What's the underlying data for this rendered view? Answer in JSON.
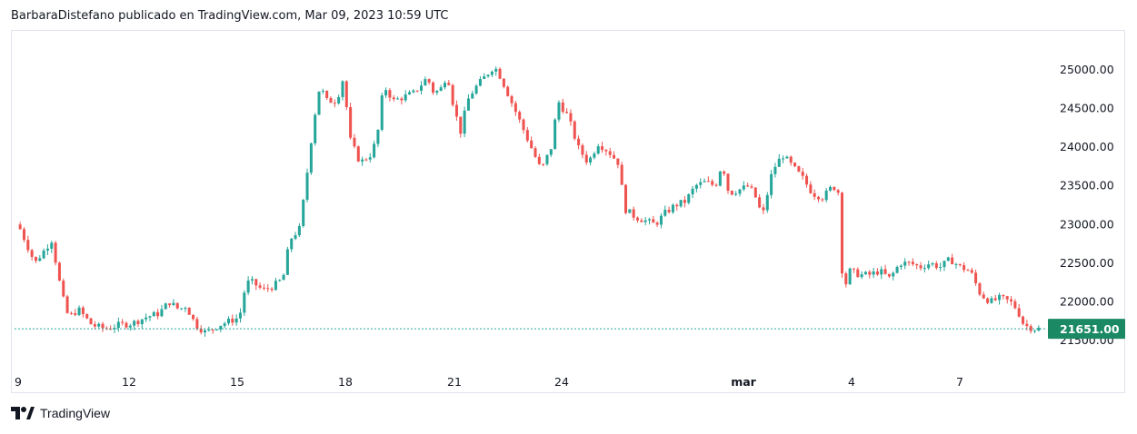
{
  "header": {
    "title": "BarbaraDistefano publicado en TradingView.com, Mar 09, 2023 10:59 UTC"
  },
  "footer": {
    "brand": "TradingView",
    "logo_icon": "tradingview-logo-icon"
  },
  "colors": {
    "up": "#26a69a",
    "down": "#ef5350",
    "last_price_bg": "#1b8a64",
    "grid": "#e0e3eb"
  },
  "chart_data": {
    "type": "candlestick",
    "title": "",
    "xlabel": "",
    "ylabel": "",
    "ylim": [
      21400,
      25400
    ],
    "y_ticks": [
      "21500.00",
      "22000.00",
      "22500.00",
      "23000.00",
      "23500.00",
      "24000.00",
      "24500.00",
      "25000.00"
    ],
    "x_ticks": [
      "9",
      "12",
      "15",
      "18",
      "21",
      "24",
      "mar",
      "4",
      "7"
    ],
    "last_price": "21651.00",
    "grid": false,
    "series": [
      {
        "values": [
          [
            0,
            23000
          ],
          [
            0.5,
            22500
          ],
          [
            1,
            22800
          ],
          [
            1.3,
            22100
          ],
          [
            1.5,
            21800
          ],
          [
            1.8,
            21900
          ],
          [
            2.2,
            21700
          ],
          [
            2.6,
            21650
          ],
          [
            3,
            21700
          ],
          [
            3.4,
            21720
          ],
          [
            3.8,
            21800
          ],
          [
            4.2,
            21850
          ],
          [
            4.5,
            22000
          ],
          [
            4.8,
            21900
          ],
          [
            5,
            21950
          ],
          [
            5.3,
            21700
          ],
          [
            5.6,
            21600
          ],
          [
            6,
            21700
          ],
          [
            6.3,
            21750
          ],
          [
            6.6,
            21800
          ],
          [
            6.8,
            22250
          ],
          [
            7,
            22250
          ],
          [
            7.3,
            22150
          ],
          [
            7.6,
            22200
          ],
          [
            7.9,
            22300
          ],
          [
            8.1,
            22800
          ],
          [
            8.4,
            22950
          ],
          [
            8.6,
            23600
          ],
          [
            8.8,
            24300
          ],
          [
            9,
            24800
          ],
          [
            9.2,
            24600
          ],
          [
            9.5,
            24600
          ],
          [
            9.7,
            24900
          ],
          [
            9.9,
            24100
          ],
          [
            10.2,
            23800
          ],
          [
            10.5,
            23900
          ],
          [
            10.7,
            24100
          ],
          [
            10.9,
            24800
          ],
          [
            11.2,
            24600
          ],
          [
            11.5,
            24650
          ],
          [
            11.8,
            24700
          ],
          [
            12,
            24800
          ],
          [
            12.2,
            24900
          ],
          [
            12.4,
            24700
          ],
          [
            12.6,
            24750
          ],
          [
            12.8,
            24950
          ],
          [
            13,
            24500
          ],
          [
            13.2,
            24200
          ],
          [
            13.4,
            24600
          ],
          [
            13.6,
            24750
          ],
          [
            13.8,
            24850
          ],
          [
            14,
            24950
          ],
          [
            14.2,
            25050
          ],
          [
            14.4,
            24900
          ],
          [
            14.6,
            24700
          ],
          [
            14.8,
            24500
          ],
          [
            15,
            24300
          ],
          [
            15.3,
            24000
          ],
          [
            15.6,
            23700
          ],
          [
            15.9,
            24000
          ],
          [
            16.1,
            24600
          ],
          [
            16.4,
            24400
          ],
          [
            16.7,
            24000
          ],
          [
            17,
            23800
          ],
          [
            17.3,
            24050
          ],
          [
            17.6,
            23950
          ],
          [
            17.9,
            23800
          ],
          [
            18.1,
            23200
          ],
          [
            18.4,
            23100
          ],
          [
            18.7,
            23050
          ],
          [
            19,
            23000
          ],
          [
            19.3,
            23150
          ],
          [
            19.6,
            23250
          ],
          [
            19.9,
            23300
          ],
          [
            20.2,
            23500
          ],
          [
            20.5,
            23550
          ],
          [
            20.8,
            23500
          ],
          [
            21,
            23800
          ],
          [
            21.2,
            23400
          ],
          [
            21.5,
            23450
          ],
          [
            21.8,
            23500
          ],
          [
            22,
            23350
          ],
          [
            22.2,
            23100
          ],
          [
            22.5,
            23700
          ],
          [
            22.8,
            23900
          ],
          [
            23.1,
            23750
          ],
          [
            23.4,
            23600
          ],
          [
            23.7,
            23400
          ],
          [
            24,
            23350
          ],
          [
            24.3,
            23500
          ],
          [
            24.5,
            23400
          ],
          [
            24.6,
            22100
          ],
          [
            24.8,
            22400
          ],
          [
            25.1,
            22350
          ],
          [
            25.4,
            22350
          ],
          [
            25.7,
            22400
          ],
          [
            26,
            22300
          ],
          [
            26.3,
            22500
          ],
          [
            26.6,
            22500
          ],
          [
            26.9,
            22450
          ],
          [
            27.2,
            22500
          ],
          [
            27.5,
            22450
          ],
          [
            27.8,
            22550
          ],
          [
            28.1,
            22450
          ],
          [
            28.4,
            22400
          ],
          [
            28.7,
            22100
          ],
          [
            29,
            22000
          ],
          [
            29.3,
            22050
          ],
          [
            29.6,
            22000
          ],
          [
            29.8,
            21900
          ],
          [
            30,
            21700
          ],
          [
            30.3,
            21651
          ]
        ]
      }
    ]
  }
}
